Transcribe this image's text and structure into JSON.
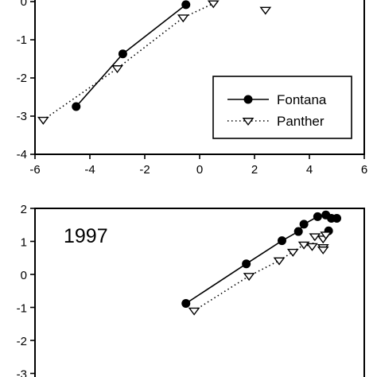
{
  "chart_data": [
    {
      "type": "line",
      "title": "",
      "xlabel": "",
      "ylabel": "",
      "xlim": [
        -6,
        6
      ],
      "ylim": [
        -4,
        0
      ],
      "x_ticks": [
        -6,
        -4,
        -2,
        0,
        2,
        4,
        6
      ],
      "y_ticks": [
        0,
        -1,
        -2,
        -3,
        -4
      ],
      "x_tick_labels": [
        "-6",
        "-4",
        "-2",
        "0",
        "2",
        "4",
        "6"
      ],
      "y_tick_labels": [
        "0",
        "-1",
        "-2",
        "-3",
        "-4"
      ],
      "legend": {
        "placement": "lower-right",
        "entries": [
          "Fontana",
          "Panther"
        ]
      },
      "series": [
        {
          "name": "Fontana",
          "marker": "filled-circle",
          "line": "solid",
          "points": [
            [
              -4.5,
              -2.75
            ],
            [
              -2.8,
              -1.37
            ],
            [
              -0.5,
              -0.08
            ]
          ]
        },
        {
          "name": "Panther",
          "marker": "open-triangle-down",
          "line": "dotted",
          "points": [
            [
              -5.7,
              -3.1
            ],
            [
              -3.0,
              -1.75
            ],
            [
              -0.6,
              -0.42
            ],
            [
              0.5,
              -0.05
            ],
            [
              2.4,
              -0.22
            ]
          ]
        }
      ]
    },
    {
      "type": "line",
      "annotation": "1997",
      "xlim": [
        -6,
        6
      ],
      "ylim": [
        -3,
        2
      ],
      "y_ticks": [
        2,
        1,
        0,
        -1,
        -2,
        -3
      ],
      "y_tick_labels": [
        "2",
        "1",
        "0",
        "-1",
        "-2",
        "-3"
      ],
      "series": [
        {
          "name": "Fontana",
          "marker": "filled-circle",
          "line": "solid",
          "points": [
            [
              -0.5,
              -0.88
            ],
            [
              1.7,
              0.32
            ],
            [
              3.0,
              1.02
            ],
            [
              3.6,
              1.3
            ],
            [
              3.8,
              1.52
            ],
            [
              4.3,
              1.75
            ],
            [
              4.6,
              1.8
            ],
            [
              4.8,
              1.7
            ],
            [
              5.0,
              1.7
            ],
            [
              4.7,
              1.32
            ]
          ]
        },
        {
          "name": "Panther",
          "marker": "open-triangle-down",
          "line": "dotted",
          "points": [
            [
              -0.2,
              -1.1
            ],
            [
              1.8,
              -0.05
            ],
            [
              2.9,
              0.42
            ],
            [
              3.4,
              0.68
            ],
            [
              3.8,
              0.9
            ],
            [
              4.1,
              0.85
            ],
            [
              4.2,
              1.15
            ],
            [
              4.5,
              1.08
            ],
            [
              4.6,
              1.2
            ],
            [
              4.5,
              0.82
            ],
            [
              4.5,
              0.75
            ]
          ]
        }
      ]
    }
  ]
}
